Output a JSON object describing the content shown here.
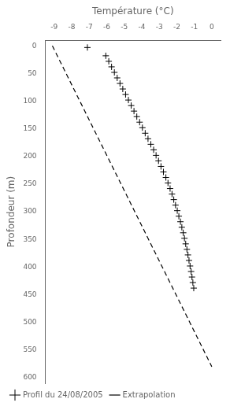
{
  "chart_data": {
    "type": "scatter",
    "xlabel": "Température (°C)",
    "ylabel": "Profondeur (m)",
    "xlim": [
      -9.5,
      0.5
    ],
    "ylim": [
      610,
      -10
    ],
    "xticks": [
      -9,
      -8,
      -7,
      -6,
      -5,
      -4,
      -3,
      -2,
      -1,
      0
    ],
    "yticks": [
      0,
      50,
      100,
      150,
      200,
      250,
      300,
      350,
      400,
      450,
      500,
      550,
      600
    ],
    "grid": false,
    "legend": "lower left",
    "series": [
      {
        "name": "Extrapolation",
        "type": "line",
        "line_style": "dashed",
        "color": "black",
        "x": [
          -9.1,
          0.0
        ],
        "values": [
          0,
          580
        ]
      },
      {
        "name": "Profil du 24/08/2005",
        "type": "scatter",
        "marker": "+",
        "color": "black",
        "x": [
          -7.1,
          -6.05,
          -5.88,
          -5.72,
          -5.56,
          -5.4,
          -5.24,
          -5.08,
          -4.92,
          -4.76,
          -4.6,
          -4.44,
          -4.28,
          -4.12,
          -3.96,
          -3.8,
          -3.64,
          -3.48,
          -3.32,
          -3.18,
          -3.04,
          -2.9,
          -2.76,
          -2.62,
          -2.5,
          -2.38,
          -2.27,
          -2.17,
          -2.07,
          -1.97,
          -1.88,
          -1.79,
          -1.71,
          -1.63,
          -1.56,
          -1.49,
          -1.42,
          -1.36,
          -1.3,
          -1.24,
          -1.18,
          -1.13,
          -1.08,
          -1.03
        ],
        "values": [
          3,
          18,
          28,
          38,
          48,
          58,
          68,
          78,
          88,
          98,
          108,
          118,
          128,
          138,
          148,
          158,
          168,
          178,
          188,
          198,
          208,
          218,
          228,
          238,
          248,
          258,
          268,
          278,
          288,
          298,
          308,
          318,
          328,
          338,
          348,
          358,
          368,
          378,
          388,
          398,
          408,
          418,
          428,
          438
        ]
      }
    ]
  }
}
